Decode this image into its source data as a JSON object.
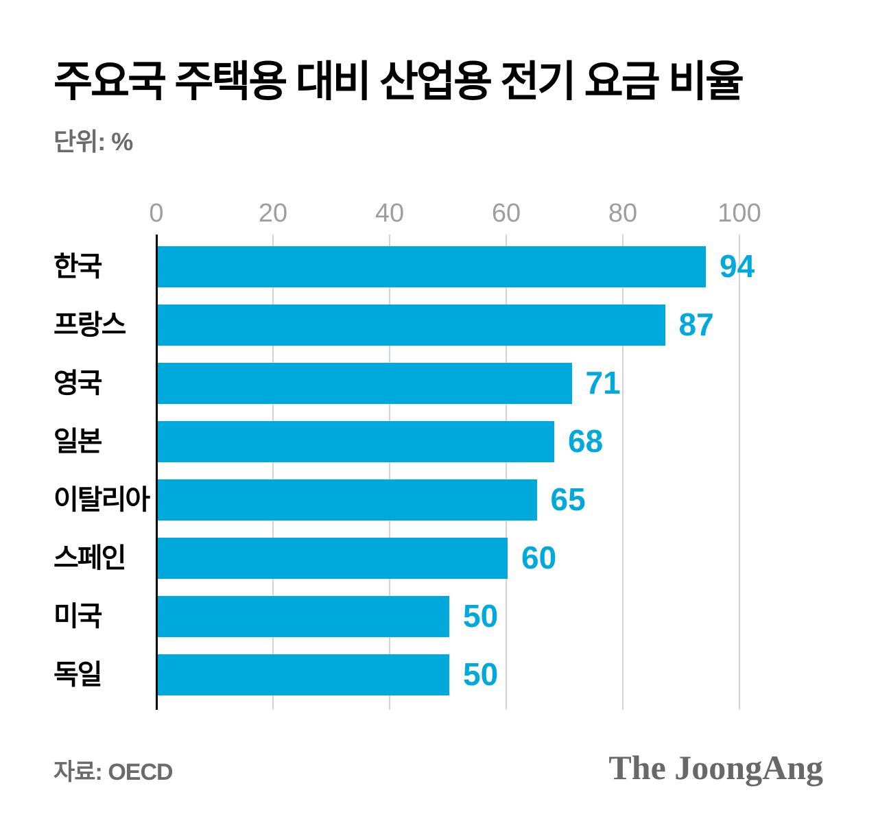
{
  "title": "주요국 주택용 대비 산업용 전기 요금 비율",
  "unit_label": "단위: %",
  "source_label": "자료: OECD",
  "brand": "The JoongAng",
  "colors": {
    "bar": "#00a9dc",
    "value_label": "#00a9dc",
    "tick_label": "#9e9e9e",
    "gridline": "#d4d4d4",
    "axis_line": "#000000",
    "title_text": "#000000",
    "muted_text": "#6b6b6b"
  },
  "chart_data": {
    "type": "bar",
    "orientation": "horizontal",
    "title": "주요국 주택용 대비 산업용 전기 요금 비율",
    "unit": "%",
    "categories": [
      "한국",
      "프랑스",
      "영국",
      "일본",
      "이탈리아",
      "스페인",
      "미국",
      "독일"
    ],
    "values": [
      94,
      87,
      71,
      68,
      65,
      60,
      50,
      50
    ],
    "xlabel": "",
    "ylabel": "",
    "xlim": [
      0,
      100
    ],
    "xticks": [
      0,
      20,
      40,
      60,
      80,
      100
    ],
    "grid": true,
    "legend": false,
    "source": "OECD"
  }
}
